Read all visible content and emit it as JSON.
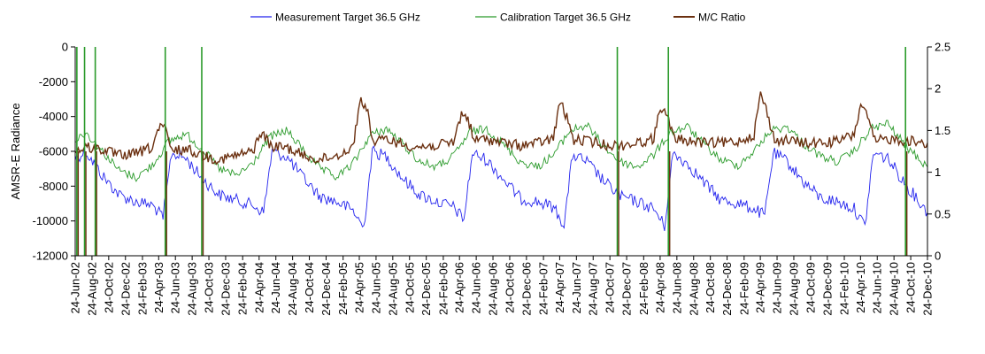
{
  "chart_data": {
    "type": "line",
    "title": "",
    "ylabel": "AMSR-E Radiance",
    "y2label": "",
    "ylim": [
      -12000,
      0
    ],
    "y2lim": [
      0,
      2.5
    ],
    "yticks": [
      0,
      -2000,
      -4000,
      -6000,
      -8000,
      -10000,
      -12000
    ],
    "y2ticks": [
      2.5,
      2,
      1.5,
      1,
      0.5,
      0
    ],
    "xlim": [
      "2002-06-24",
      "2010-12-24"
    ],
    "x_tick_labels": [
      "24-Jun-02",
      "24-Aug-02",
      "24-Oct-02",
      "24-Dec-02",
      "24-Feb-03",
      "24-Apr-03",
      "24-Jun-03",
      "24-Aug-03",
      "24-Oct-03",
      "24-Dec-03",
      "24-Feb-04",
      "24-Apr-04",
      "24-Jun-04",
      "24-Aug-04",
      "24-Oct-04",
      "24-Dec-04",
      "24-Feb-05",
      "24-Apr-05",
      "24-Jun-05",
      "24-Aug-05",
      "24-Oct-05",
      "24-Dec-05",
      "24-Feb-06",
      "24-Apr-06",
      "24-Jun-06",
      "24-Aug-06",
      "24-Oct-06",
      "24-Dec-06",
      "24-Feb-07",
      "24-Apr-07",
      "24-Jun-07",
      "24-Aug-07",
      "24-Oct-07",
      "24-Dec-07",
      "24-Feb-08",
      "24-Apr-08",
      "24-Jun-08",
      "24-Aug-08",
      "24-Oct-08",
      "24-Dec-08",
      "24-Feb-09",
      "24-Apr-09",
      "24-Jun-09",
      "24-Aug-09",
      "24-Oct-09",
      "24-Dec-09",
      "24-Feb-10",
      "24-Apr-10",
      "24-Jun-10",
      "24-Aug-10",
      "24-Oct-10",
      "24-Dec-10"
    ],
    "legend_position": "top",
    "grid": false,
    "series": [
      {
        "name": "Measurement Target 36.5 GHz",
        "axis": "left",
        "color": "#2323ee",
        "x": [
          "2002-06-24",
          "2002-08-01",
          "2002-10-01",
          "2002-12-01",
          "2003-02-01",
          "2003-04-01",
          "2003-05-10",
          "2003-06-10",
          "2003-08-01",
          "2003-10-01",
          "2003-12-01",
          "2004-02-01",
          "2004-04-01",
          "2004-05-10",
          "2004-06-10",
          "2004-08-01",
          "2004-10-01",
          "2004-12-01",
          "2005-02-01",
          "2005-04-01",
          "2005-05-10",
          "2005-06-10",
          "2005-08-01",
          "2005-10-01",
          "2005-12-01",
          "2006-02-01",
          "2006-04-01",
          "2006-05-10",
          "2006-06-10",
          "2006-08-01",
          "2006-10-01",
          "2006-12-01",
          "2007-02-01",
          "2007-04-01",
          "2007-05-10",
          "2007-06-10",
          "2007-08-01",
          "2007-10-01",
          "2007-12-01",
          "2008-02-01",
          "2008-04-01",
          "2008-05-10",
          "2008-06-10",
          "2008-08-01",
          "2008-10-01",
          "2008-12-01",
          "2009-02-01",
          "2009-04-01",
          "2009-05-10",
          "2009-06-10",
          "2009-08-01",
          "2009-10-01",
          "2009-12-01",
          "2010-02-01",
          "2010-04-01",
          "2010-05-10",
          "2010-06-10",
          "2010-08-01",
          "2010-10-01",
          "2010-12-24"
        ],
        "values": [
          -6400,
          -6000,
          -7400,
          -8500,
          -8900,
          -9100,
          -9800,
          -6100,
          -6400,
          -7600,
          -8500,
          -8800,
          -9100,
          -9500,
          -6000,
          -6300,
          -7500,
          -8600,
          -8900,
          -9400,
          -10400,
          -6000,
          -6300,
          -7600,
          -8500,
          -8900,
          -9200,
          -9900,
          -6100,
          -6500,
          -7600,
          -8700,
          -8900,
          -9200,
          -10200,
          -6200,
          -6600,
          -7700,
          -8600,
          -8900,
          -9300,
          -10300,
          -6100,
          -6700,
          -7800,
          -8800,
          -9000,
          -9300,
          -9700,
          -6100,
          -6600,
          -7800,
          -8700,
          -8900,
          -9300,
          -10300,
          -6100,
          -6400,
          -7800,
          -9500
        ]
      },
      {
        "name": "Calibration Target 36.5 GHz",
        "axis": "left",
        "color": "#2a9a2a",
        "x": [
          "2002-06-24",
          "2002-08-01",
          "2002-10-01",
          "2002-12-01",
          "2003-02-01",
          "2003-04-01",
          "2003-06-01",
          "2003-08-01",
          "2003-10-01",
          "2003-12-01",
          "2004-02-01",
          "2004-04-01",
          "2004-06-01",
          "2004-08-01",
          "2004-10-01",
          "2004-12-01",
          "2005-02-01",
          "2005-04-01",
          "2005-06-01",
          "2005-08-01",
          "2005-10-01",
          "2005-12-01",
          "2006-02-01",
          "2006-04-01",
          "2006-06-01",
          "2006-08-01",
          "2006-10-01",
          "2006-12-01",
          "2007-02-01",
          "2007-04-01",
          "2007-06-01",
          "2007-08-01",
          "2007-10-01",
          "2007-12-01",
          "2008-02-01",
          "2008-04-01",
          "2008-06-01",
          "2008-08-01",
          "2008-10-01",
          "2008-12-01",
          "2009-02-01",
          "2009-04-01",
          "2009-06-01",
          "2009-08-01",
          "2009-10-01",
          "2009-12-01",
          "2010-02-01",
          "2010-04-01",
          "2010-06-01",
          "2010-08-01",
          "2010-10-01",
          "2010-12-24"
        ],
        "values": [
          -5400,
          -4900,
          -6000,
          -7100,
          -7500,
          -6800,
          -5400,
          -5000,
          -5900,
          -7000,
          -7400,
          -6700,
          -5200,
          -4800,
          -5900,
          -7000,
          -7500,
          -6700,
          -5100,
          -4700,
          -5600,
          -6600,
          -6900,
          -6300,
          -4900,
          -4700,
          -5600,
          -6600,
          -6900,
          -6200,
          -4800,
          -4500,
          -5700,
          -6600,
          -6900,
          -6200,
          -4900,
          -4600,
          -5600,
          -6500,
          -6800,
          -6000,
          -4800,
          -4600,
          -5600,
          -6300,
          -6600,
          -6000,
          -4700,
          -4400,
          -5600,
          -6900
        ]
      },
      {
        "name": "M/C Ratio",
        "axis": "right",
        "color": "#6b3010",
        "x": [
          "2002-06-24",
          "2002-08-01",
          "2002-10-01",
          "2002-12-01",
          "2003-02-01",
          "2003-04-01",
          "2003-04-20",
          "2003-05-15",
          "2003-06-10",
          "2003-08-01",
          "2003-10-01",
          "2003-12-01",
          "2004-02-01",
          "2004-04-01",
          "2004-05-01",
          "2004-06-10",
          "2004-08-01",
          "2004-10-01",
          "2004-12-01",
          "2005-02-01",
          "2005-04-01",
          "2005-04-25",
          "2005-05-20",
          "2005-06-15",
          "2005-08-01",
          "2005-10-01",
          "2005-12-01",
          "2006-02-01",
          "2006-04-01",
          "2006-05-01",
          "2006-05-25",
          "2006-06-15",
          "2006-08-01",
          "2006-10-01",
          "2006-12-01",
          "2007-02-01",
          "2007-04-01",
          "2007-04-25",
          "2007-05-20",
          "2007-06-15",
          "2007-08-01",
          "2007-10-01",
          "2007-12-01",
          "2008-02-01",
          "2008-04-01",
          "2008-04-25",
          "2008-05-20",
          "2008-06-15",
          "2008-08-01",
          "2008-10-01",
          "2008-12-01",
          "2009-02-01",
          "2009-04-01",
          "2009-04-25",
          "2009-05-20",
          "2009-06-15",
          "2009-08-01",
          "2009-10-01",
          "2009-12-01",
          "2010-02-01",
          "2010-04-01",
          "2010-04-25",
          "2010-05-20",
          "2010-06-15",
          "2010-08-01",
          "2010-10-01",
          "2010-12-24"
        ],
        "values": [
          1.25,
          1.3,
          1.27,
          1.2,
          1.22,
          1.3,
          1.5,
          1.55,
          1.25,
          1.28,
          1.2,
          1.15,
          1.2,
          1.25,
          1.48,
          1.3,
          1.3,
          1.2,
          1.15,
          1.2,
          1.3,
          1.85,
          1.78,
          1.35,
          1.4,
          1.33,
          1.3,
          1.32,
          1.35,
          1.7,
          1.65,
          1.38,
          1.4,
          1.35,
          1.32,
          1.35,
          1.4,
          1.85,
          1.65,
          1.38,
          1.38,
          1.33,
          1.32,
          1.35,
          1.4,
          1.8,
          1.65,
          1.4,
          1.38,
          1.35,
          1.35,
          1.37,
          1.45,
          1.95,
          1.7,
          1.38,
          1.38,
          1.35,
          1.35,
          1.37,
          1.45,
          1.82,
          1.65,
          1.37,
          1.4,
          1.38,
          1.35
        ]
      }
    ],
    "spikes": [
      {
        "x": "2002-06-30",
        "color": "#2a9a2a"
      },
      {
        "x": "2002-07-28",
        "color": "#2a9a2a"
      },
      {
        "x": "2002-09-05",
        "color": "#2a9a2a"
      },
      {
        "x": "2003-05-18",
        "color": "#2a9a2a"
      },
      {
        "x": "2003-09-28",
        "color": "#2a9a2a"
      },
      {
        "x": "2007-11-20",
        "color": "#2a9a2a"
      },
      {
        "x": "2008-05-24",
        "color": "#2a9a2a"
      },
      {
        "x": "2010-10-05",
        "color": "#2a9a2a"
      }
    ]
  }
}
